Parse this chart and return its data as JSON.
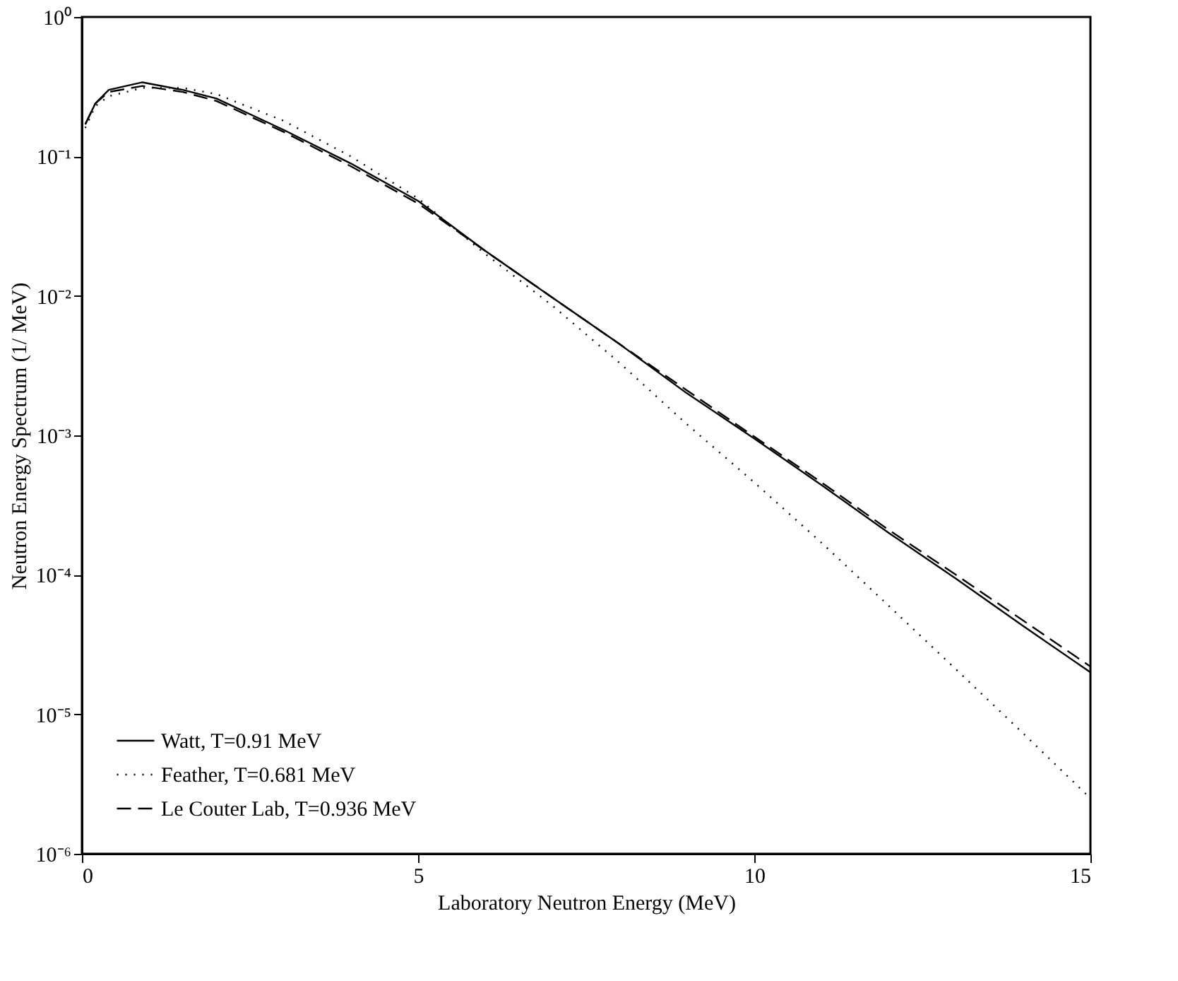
{
  "chart_data": {
    "type": "line",
    "xlabel": "Laboratory Neutron Energy (MeV)",
    "ylabel": "Neutron Energy Spectrum (1/ MeV)",
    "log": "y",
    "grid": false,
    "legend": "bottom left",
    "x": [
      0.05,
      0.2,
      0.4,
      0.9,
      1.5,
      2,
      3,
      4,
      5,
      6,
      7,
      8,
      9,
      10,
      11,
      12,
      13,
      14,
      15
    ],
    "xlim": [
      0,
      15
    ],
    "xticks": [
      0,
      5,
      10,
      15
    ],
    "ylim": [
      1e-06,
      1
    ],
    "yticks": [
      {
        "value": 1e-06,
        "label": "10⁻⁶"
      },
      {
        "value": 1e-05,
        "label": "10⁻⁵"
      },
      {
        "value": 0.0001,
        "label": "10⁻⁴"
      },
      {
        "value": 0.001,
        "label": "10⁻³"
      },
      {
        "value": 0.01,
        "label": "10⁻²"
      },
      {
        "value": 0.1,
        "label": "10⁻¹"
      },
      {
        "value": 1,
        "label": "10⁰"
      }
    ],
    "series": [
      {
        "name": "Watt, T=0.91 MeV",
        "color": "#000000",
        "line_style": "solid",
        "values": [
          0.17,
          0.24,
          0.3,
          0.34,
          0.3,
          0.26,
          0.155,
          0.089,
          0.048,
          0.021,
          0.0097,
          0.0045,
          0.002,
          0.00095,
          0.00044,
          0.0002,
          9.4e-05,
          4.3e-05,
          2e-05
        ]
      },
      {
        "name": "Feather,  T=0.681 MeV",
        "color": "#000000",
        "line_style": "dotted",
        "values": [
          0.16,
          0.23,
          0.27,
          0.31,
          0.31,
          0.28,
          0.18,
          0.1,
          0.05,
          0.02,
          0.0085,
          0.0033,
          0.0012,
          0.00046,
          0.00017,
          6e-05,
          2.1e-05,
          7.3e-06,
          2.5e-06
        ]
      },
      {
        "name": "Le Couter Lab, T=0.936 MeV",
        "color": "#000000",
        "line_style": "dashed",
        "values": [
          0.17,
          0.24,
          0.29,
          0.32,
          0.29,
          0.25,
          0.15,
          0.085,
          0.046,
          0.021,
          0.0097,
          0.0045,
          0.0021,
          0.00098,
          0.00046,
          0.00021,
          0.0001,
          4.7e-05,
          2.2e-05
        ]
      }
    ]
  }
}
